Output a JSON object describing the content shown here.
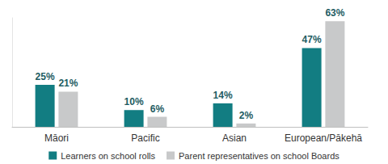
{
  "chart_data": {
    "type": "bar",
    "categories": [
      "Māori",
      "Pacific",
      "Asian",
      "European/Pākehā"
    ],
    "series": [
      {
        "name": "Learners on school rolls",
        "color": "#127d82",
        "values": [
          25,
          10,
          14,
          47
        ],
        "value_labels": [
          "25%",
          "10%",
          "14%",
          "47%"
        ]
      },
      {
        "name": "Parent representatives on school Boards",
        "color": "#c8c9ca",
        "values": [
          21,
          6,
          2,
          63
        ],
        "value_labels": [
          "21%",
          "6%",
          "2%",
          "63%"
        ]
      }
    ],
    "ylim": [
      0,
      65
    ],
    "grid": false,
    "legend": "bottom",
    "data_labels": true,
    "tick_labels": "x"
  }
}
